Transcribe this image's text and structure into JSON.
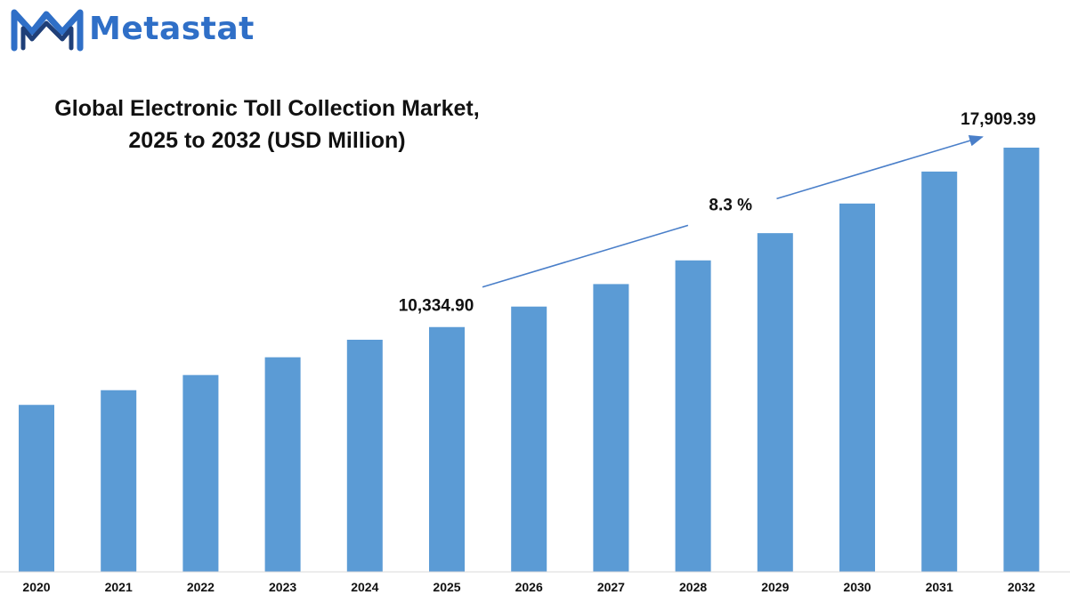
{
  "brand": {
    "logo_text": "Metastat",
    "logo_icon": "metastat-m-logo",
    "color": "#2f6fc7"
  },
  "chart_data": {
    "type": "bar",
    "title_lines": [
      "Global Electronic Toll Collection Market,",
      "2025 to 2032 (USD Million)"
    ],
    "xlabel": "",
    "ylabel": "",
    "categories": [
      "2020",
      "2021",
      "2022",
      "2023",
      "2024",
      "2025",
      "2026",
      "2027",
      "2028",
      "2029",
      "2030",
      "2031",
      "2032"
    ],
    "values": [
      7050,
      7670,
      8310,
      9060,
      9800,
      10334.9,
      11200,
      12150,
      13150,
      14300,
      15550,
      16900,
      17909.39
    ],
    "ylim": [
      0,
      19900
    ],
    "grid": false,
    "legend": "none",
    "bar_color": "#5b9bd5",
    "annotations": {
      "start_label": "10,334.90",
      "end_label": "17,909.39",
      "cagr_label": "8.3 %",
      "start_index": 5,
      "end_index": 12
    }
  }
}
